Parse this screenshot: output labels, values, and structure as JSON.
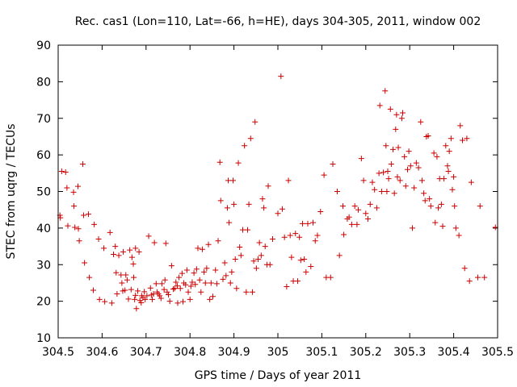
{
  "chart_data": {
    "type": "scatter",
    "title": "Rec. cas1 (Lon=110, Lat=-66, h=HE), days 304-305, 2011, window 002",
    "xlabel": "GPS time / Days of year 2011",
    "ylabel": "STEC from uqrg / TECUs",
    "xlim": [
      304.5,
      305.5
    ],
    "ylim": [
      10,
      90
    ],
    "grid": false,
    "xticks": [
      304.5,
      304.6,
      304.7,
      304.8,
      304.9,
      305,
      305.1,
      305.2,
      305.3,
      305.4,
      305.5
    ],
    "xtick_labels": [
      "304.5",
      "304.6",
      "304.7",
      "304.8",
      "304.9",
      "305",
      "305.1",
      "305.2",
      "305.3",
      "305.4",
      "305.5"
    ],
    "yticks": [
      10,
      20,
      30,
      40,
      50,
      60,
      70,
      80,
      90
    ],
    "ytick_labels": [
      "10",
      "20",
      "30",
      "40",
      "50",
      "60",
      "70",
      "80",
      "90"
    ],
    "marker": "+",
    "series": [
      {
        "name": "STEC",
        "color": "#cc0000",
        "points": [
          [
            304.504,
            43.5
          ],
          [
            304.505,
            42.8
          ],
          [
            304.508,
            55.5
          ],
          [
            304.517,
            55.3
          ],
          [
            304.52,
            51
          ],
          [
            304.522,
            40.6
          ],
          [
            304.535,
            49.8
          ],
          [
            304.536,
            46
          ],
          [
            304.538,
            40.2
          ],
          [
            304.545,
            51.4
          ],
          [
            304.546,
            39.8
          ],
          [
            304.548,
            36.5
          ],
          [
            304.556,
            57.5
          ],
          [
            304.558,
            43.5
          ],
          [
            304.56,
            30.5
          ],
          [
            304.569,
            43.8
          ],
          [
            304.571,
            26.5
          ],
          [
            304.58,
            23
          ],
          [
            304.582,
            41
          ],
          [
            304.592,
            37
          ],
          [
            304.594,
            20.5
          ],
          [
            304.604,
            34.5
          ],
          [
            304.606,
            19.9
          ],
          [
            304.618,
            38.8
          ],
          [
            304.622,
            19.5
          ],
          [
            304.626,
            32.8
          ],
          [
            304.63,
            35
          ],
          [
            304.632,
            27.8
          ],
          [
            304.634,
            22
          ],
          [
            304.638,
            32.5
          ],
          [
            304.643,
            27.2
          ],
          [
            304.645,
            25
          ],
          [
            304.647,
            22.8
          ],
          [
            304.648,
            33.5
          ],
          [
            304.652,
            23
          ],
          [
            304.654,
            27.2
          ],
          [
            304.657,
            25.8
          ],
          [
            304.66,
            20.6
          ],
          [
            304.663,
            34
          ],
          [
            304.666,
            23.2
          ],
          [
            304.668,
            32
          ],
          [
            304.671,
            30.2
          ],
          [
            304.672,
            26.5
          ],
          [
            304.674,
            20.5
          ],
          [
            304.676,
            34.5
          ],
          [
            304.676,
            21.6
          ],
          [
            304.678,
            18
          ],
          [
            304.681,
            22.8
          ],
          [
            304.684,
            33.5
          ],
          [
            304.686,
            20.2
          ],
          [
            304.689,
            19.6
          ],
          [
            304.69,
            21.5
          ],
          [
            304.693,
            21
          ],
          [
            304.696,
            22.6
          ],
          [
            304.698,
            20.5
          ],
          [
            304.702,
            21.5
          ],
          [
            304.706,
            37.8
          ],
          [
            304.71,
            23.6
          ],
          [
            304.712,
            21.7
          ],
          [
            304.714,
            20.5
          ],
          [
            304.717,
            22
          ],
          [
            304.719,
            36
          ],
          [
            304.723,
            24.8
          ],
          [
            304.725,
            22.5
          ],
          [
            304.728,
            22
          ],
          [
            304.731,
            21.5
          ],
          [
            304.734,
            20.8
          ],
          [
            304.736,
            24.8
          ],
          [
            304.741,
            23.2
          ],
          [
            304.743,
            25.8
          ],
          [
            304.745,
            35.8
          ],
          [
            304.748,
            22.5
          ],
          [
            304.751,
            21.8
          ],
          [
            304.754,
            20
          ],
          [
            304.758,
            29.7
          ],
          [
            304.762,
            23.3
          ],
          [
            304.765,
            23.5
          ],
          [
            304.768,
            25.2
          ],
          [
            304.771,
            24.2
          ],
          [
            304.772,
            19.5
          ],
          [
            304.775,
            26.5
          ],
          [
            304.778,
            23.5
          ],
          [
            304.782,
            27.6
          ],
          [
            304.784,
            19.9
          ],
          [
            304.786,
            25
          ],
          [
            304.79,
            24.5
          ],
          [
            304.793,
            28.5
          ],
          [
            304.796,
            22.5
          ],
          [
            304.8,
            20.5
          ],
          [
            304.802,
            24.1
          ],
          [
            304.805,
            25.2
          ],
          [
            304.809,
            27.7
          ],
          [
            304.812,
            24.6
          ],
          [
            304.815,
            28.8
          ],
          [
            304.818,
            34.5
          ],
          [
            304.822,
            25.8
          ],
          [
            304.825,
            22.5
          ],
          [
            304.828,
            34.2
          ],
          [
            304.832,
            28
          ],
          [
            304.835,
            25
          ],
          [
            304.838,
            29
          ],
          [
            304.842,
            35.5
          ],
          [
            304.845,
            20.5
          ],
          [
            304.848,
            25
          ],
          [
            304.852,
            21.3
          ],
          [
            304.858,
            28.5
          ],
          [
            304.861,
            24.8
          ],
          [
            304.864,
            36.5
          ],
          [
            304.868,
            58
          ],
          [
            304.87,
            47.5
          ],
          [
            304.875,
            26
          ],
          [
            304.879,
            30.5
          ],
          [
            304.882,
            27
          ],
          [
            304.885,
            45.5
          ],
          [
            304.887,
            53
          ],
          [
            304.889,
            41.5
          ],
          [
            304.892,
            25
          ],
          [
            304.895,
            28
          ],
          [
            304.898,
            53
          ],
          [
            304.9,
            46.5
          ],
          [
            304.903,
            31.5
          ],
          [
            304.906,
            23.5
          ],
          [
            304.91,
            57.8
          ],
          [
            304.913,
            34.8
          ],
          [
            304.916,
            32.5
          ],
          [
            304.92,
            39.5
          ],
          [
            304.924,
            62.5
          ],
          [
            304.928,
            22.5
          ],
          [
            304.931,
            39.5
          ],
          [
            304.934,
            46.5
          ],
          [
            304.938,
            64.5
          ],
          [
            304.942,
            22.5
          ],
          [
            304.945,
            31
          ],
          [
            304.948,
            69
          ],
          [
            304.951,
            29
          ],
          [
            304.955,
            31.5
          ],
          [
            304.958,
            36
          ],
          [
            304.962,
            32.5
          ],
          [
            304.965,
            48
          ],
          [
            304.968,
            45.5
          ],
          [
            304.971,
            35
          ],
          [
            304.975,
            30
          ],
          [
            304.978,
            51.5
          ],
          [
            304.982,
            30
          ],
          [
            304.988,
            37
          ],
          [
            305.0,
            44
          ],
          [
            305.007,
            81.5
          ],
          [
            305.01,
            45.2
          ],
          [
            305.015,
            37.5
          ],
          [
            305.02,
            24
          ],
          [
            305.024,
            53
          ],
          [
            305.028,
            38
          ],
          [
            305.031,
            32
          ],
          [
            305.035,
            25.5
          ],
          [
            305.04,
            38.5
          ],
          [
            305.045,
            25.5
          ],
          [
            305.049,
            37.5
          ],
          [
            305.052,
            31.2
          ],
          [
            305.056,
            41.2
          ],
          [
            305.06,
            31.5
          ],
          [
            305.064,
            28
          ],
          [
            305.068,
            41.2
          ],
          [
            305.075,
            29.5
          ],
          [
            305.08,
            41.5
          ],
          [
            305.085,
            36.5
          ],
          [
            305.09,
            38
          ],
          [
            305.097,
            44.5
          ],
          [
            305.105,
            54.5
          ],
          [
            305.11,
            26.5
          ],
          [
            305.12,
            26.5
          ],
          [
            305.125,
            57.5
          ],
          [
            305.135,
            50
          ],
          [
            305.14,
            32.5
          ],
          [
            305.148,
            46
          ],
          [
            305.15,
            38.2
          ],
          [
            305.158,
            42.5
          ],
          [
            305.162,
            43
          ],
          [
            305.168,
            41
          ],
          [
            305.175,
            46
          ],
          [
            305.18,
            41
          ],
          [
            305.183,
            45
          ],
          [
            305.19,
            59
          ],
          [
            305.195,
            53
          ],
          [
            305.2,
            44
          ],
          [
            305.205,
            42.5
          ],
          [
            305.21,
            46.5
          ],
          [
            305.215,
            52.5
          ],
          [
            305.22,
            50.5
          ],
          [
            305.225,
            45.5
          ],
          [
            305.23,
            55
          ],
          [
            305.232,
            73.5
          ],
          [
            305.236,
            50
          ],
          [
            305.24,
            55.2
          ],
          [
            305.244,
            77.5
          ],
          [
            305.246,
            62.5
          ],
          [
            305.248,
            50
          ],
          [
            305.25,
            55.5
          ],
          [
            305.252,
            53.5
          ],
          [
            305.256,
            72.5
          ],
          [
            305.258,
            57.5
          ],
          [
            305.262,
            61.5
          ],
          [
            305.265,
            49.5
          ],
          [
            305.268,
            67
          ],
          [
            305.27,
            71
          ],
          [
            305.272,
            54
          ],
          [
            305.274,
            62
          ],
          [
            305.278,
            53
          ],
          [
            305.282,
            70
          ],
          [
            305.284,
            71.5
          ],
          [
            305.288,
            59.5
          ],
          [
            305.291,
            51.5
          ],
          [
            305.295,
            56
          ],
          [
            305.298,
            61
          ],
          [
            305.302,
            57
          ],
          [
            305.306,
            40
          ],
          [
            305.31,
            51
          ],
          [
            305.315,
            57.8
          ],
          [
            305.32,
            56.5
          ],
          [
            305.325,
            69
          ],
          [
            305.328,
            53
          ],
          [
            305.332,
            49.5
          ],
          [
            305.335,
            47.5
          ],
          [
            305.338,
            65
          ],
          [
            305.342,
            65.2
          ],
          [
            305.345,
            48
          ],
          [
            305.348,
            46
          ],
          [
            305.355,
            60.5
          ],
          [
            305.358,
            41.5
          ],
          [
            305.362,
            59.5
          ],
          [
            305.365,
            45.5
          ],
          [
            305.368,
            53.5
          ],
          [
            305.372,
            46.5
          ],
          [
            305.375,
            40.5
          ],
          [
            305.378,
            53.5
          ],
          [
            305.382,
            62.5
          ],
          [
            305.386,
            57
          ],
          [
            305.388,
            55.5
          ],
          [
            305.39,
            61
          ],
          [
            305.394,
            64.5
          ],
          [
            305.397,
            50.5
          ],
          [
            305.4,
            54
          ],
          [
            305.402,
            46
          ],
          [
            305.405,
            40
          ],
          [
            305.412,
            38
          ],
          [
            305.415,
            68
          ],
          [
            305.42,
            64
          ],
          [
            305.425,
            29
          ],
          [
            305.43,
            64.5
          ],
          [
            305.436,
            25.5
          ],
          [
            305.44,
            52.5
          ],
          [
            305.455,
            26.5
          ],
          [
            305.46,
            46
          ],
          [
            305.47,
            26.5
          ],
          [
            305.495,
            40.2
          ]
        ]
      }
    ]
  }
}
